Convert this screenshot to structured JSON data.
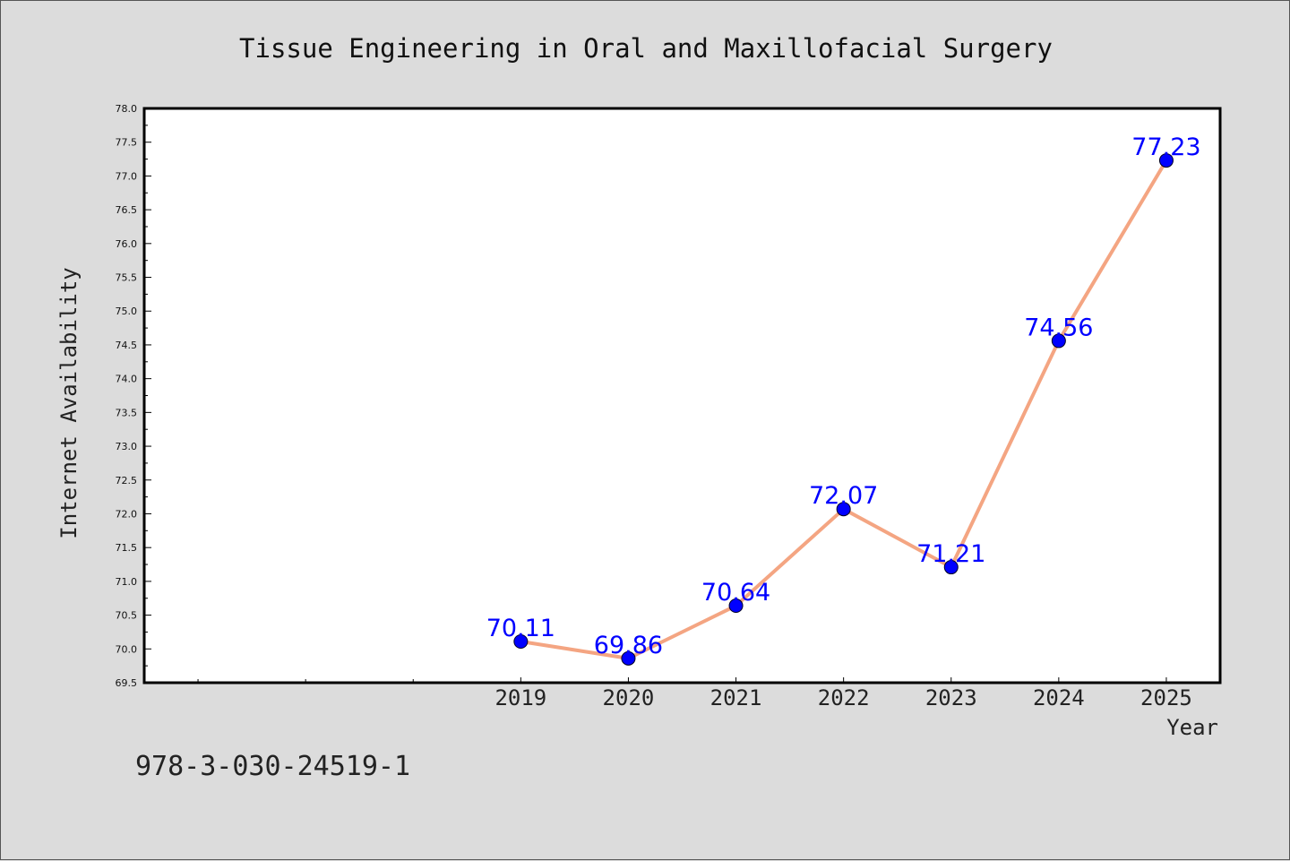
{
  "chart_data": {
    "type": "line",
    "title": "Tissue Engineering in Oral and Maxillofacial Surgery",
    "xlabel": "Year",
    "ylabel": "Internet Availability",
    "categories": [
      "2019",
      "2020",
      "2021",
      "2022",
      "2023",
      "2024",
      "2025"
    ],
    "x": [
      2019,
      2020,
      2021,
      2022,
      2023,
      2024,
      2025
    ],
    "values": [
      70.11,
      69.86,
      70.64,
      72.07,
      71.21,
      74.56,
      77.23
    ],
    "data_labels": [
      "70.11",
      "69.86",
      "70.64",
      "72.07",
      "71.21",
      "74.56",
      "77.23"
    ],
    "xlim": [
      2015.5,
      2025.5
    ],
    "ylim": [
      69.5,
      78.0
    ],
    "y_ticks": [
      "69.5",
      "70.0",
      "70.5",
      "71.0",
      "71.5",
      "72.0",
      "72.5",
      "73.0",
      "73.5",
      "74.0",
      "74.5",
      "75.0",
      "75.5",
      "76.0",
      "76.5",
      "77.0",
      "77.5",
      "78.0"
    ],
    "x_minor_ticks": [
      2016,
      2017,
      2018
    ],
    "grid": false,
    "line_color": "#f4a582",
    "marker_color": "#0000ff",
    "label_color": "#0000ff"
  },
  "footer": {
    "isbn": "978-3-030-24519-1"
  }
}
